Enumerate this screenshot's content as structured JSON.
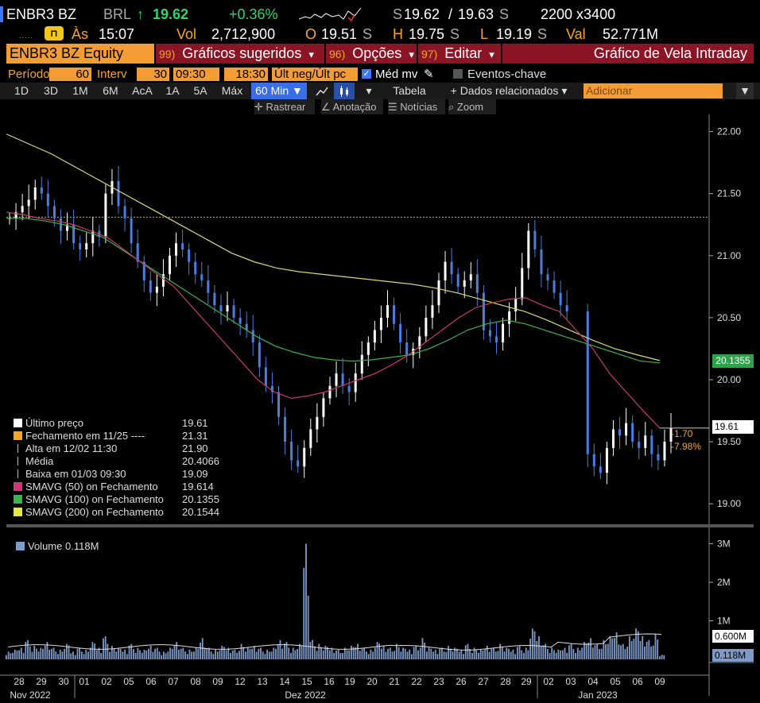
{
  "header": {
    "ticker": "ENBR3 BZ",
    "currency": "BRL",
    "up_arrow": "↑",
    "last": "19.62",
    "change_pct": "+0.36%",
    "bid_ask_prefix": "S",
    "bid": "19.62",
    "ask_sep": "/",
    "ask": "19.63",
    "ask_suffix": "S",
    "size": "2200 x3400",
    "as_label": "Às",
    "time": "15:07",
    "vol_label": "Vol",
    "vol": "2,712,900",
    "open_label": "O",
    "open": "19.51",
    "open_suffix": "S",
    "high_label": "H",
    "high": "19.75",
    "high_suffix": "S",
    "low_label": "L",
    "low": "19.19",
    "low_suffix": "S",
    "val_label": "Val",
    "val": "52.771M"
  },
  "menubar": {
    "security": "ENBR3 BZ Equity",
    "m1_num": "99)",
    "m1": "Gráficos sugeridos",
    "m2_num": "96)",
    "m2": "Opções",
    "m3_num": "97)",
    "m3": "Editar",
    "dropdown": "▾",
    "chart_title": "Gráfico de Vela Intraday"
  },
  "params": {
    "periodo_label": "Período",
    "periodo": "60",
    "interv_label": "Interv",
    "interv": "30",
    "start": "09:30",
    "end": "18:30",
    "price_type": "Últ neg/Últ pc",
    "med_mv": "Méd mv",
    "eventos": "Eventos-chave"
  },
  "range_tabs": [
    "1D",
    "3D",
    "1M",
    "6M",
    "AcA",
    "1A",
    "5A",
    "Máx"
  ],
  "active_tab": "60 Min ▼",
  "toolbar": {
    "tabela": "Tabela",
    "dados": "+ Dados relacionados",
    "adicionar": "Adicionar"
  },
  "subtools": {
    "rastrear": "Rastrear",
    "anotacao": "Anotação",
    "noticias": "Notícias",
    "zoom": "Zoom"
  },
  "legend": {
    "rows": [
      {
        "label": "Último preço",
        "value": "19.61",
        "color": "#ffffff"
      },
      {
        "label": "Fechamento em 11/25 ----",
        "value": "21.31",
        "color": "#f5a623"
      },
      {
        "label": "Alta em 12/02 11:30",
        "value": "21.90",
        "color": "#bbbbbb"
      },
      {
        "label": "Média",
        "value": "20.4066",
        "color": "#bbbbbb"
      },
      {
        "label": "Baixa em 01/03 09:30",
        "value": "19.09",
        "color": "#bbbbbb"
      },
      {
        "label": "SMAVG (50)  on Fechamento",
        "value": "19.614",
        "color": "#d6337a"
      },
      {
        "label": "SMAVG (100)  on Fechamento",
        "value": "20.1355",
        "color": "#3cb34a"
      },
      {
        "label": "SMAVG (200)  on Fechamento",
        "value": "20.1544",
        "color": "#e8e83a"
      }
    ],
    "volume_label": "Volume",
    "volume_value": "0.118M"
  },
  "price_tags": {
    "sma100": "20.1355",
    "last": "19.61",
    "chg": "-1.70",
    "chg_pct": "-7.98%",
    "vol_avg": "0.600M",
    "vol_last": "0.118M"
  },
  "chart_data": {
    "type": "candlestick",
    "y_ticks": [
      "22.00",
      "21.50",
      "21.00",
      "20.50",
      "20.00",
      "19.50",
      "19.00"
    ],
    "ylim": [
      18.95,
      22.1
    ],
    "vol_ticks": [
      "3M",
      "2M",
      "1M"
    ],
    "x_ticks": [
      "28",
      "29",
      "30",
      "01",
      "02",
      "05",
      "06",
      "07",
      "08",
      "09",
      "12",
      "13",
      "14",
      "15",
      "16",
      "19",
      "20",
      "21",
      "22",
      "23",
      "26",
      "27",
      "28",
      "29",
      "02",
      "03",
      "04",
      "05",
      "06",
      "09"
    ],
    "x_month_labels": [
      "Nov 2022",
      "Dez 2022",
      "Jan 2023"
    ],
    "reference_line": 21.31,
    "closes": [
      21.3,
      21.35,
      21.4,
      21.45,
      21.55,
      21.5,
      21.4,
      21.3,
      21.2,
      21.25,
      21.1,
      21.05,
      21.1,
      21.2,
      21.15,
      21.5,
      21.6,
      21.4,
      21.3,
      21.1,
      20.95,
      20.8,
      20.7,
      20.75,
      20.85,
      21.0,
      21.1,
      21.05,
      20.95,
      20.85,
      20.8,
      20.7,
      20.6,
      20.55,
      20.6,
      20.5,
      20.45,
      20.4,
      20.3,
      20.1,
      19.95,
      19.9,
      19.7,
      19.5,
      19.35,
      19.3,
      19.45,
      19.6,
      19.7,
      19.85,
      19.95,
      20.05,
      19.95,
      19.9,
      20.05,
      20.2,
      20.3,
      20.4,
      20.5,
      20.6,
      20.45,
      20.3,
      20.2,
      20.25,
      20.35,
      20.5,
      20.6,
      20.8,
      20.95,
      20.85,
      20.75,
      20.8,
      20.85,
      20.7,
      20.4,
      20.35,
      20.3,
      20.45,
      20.55,
      20.65,
      20.9,
      21.2,
      21.05,
      20.85,
      20.8,
      20.7,
      20.6,
      20.55,
      19.4,
      19.3,
      19.25,
      19.45,
      19.6,
      19.55,
      19.65,
      19.5,
      19.45,
      19.55,
      19.4,
      19.35,
      19.5,
      19.61
    ],
    "sma50": [
      21.35,
      21.33,
      21.3,
      21.28,
      21.25,
      21.2,
      21.15,
      21.05,
      20.95,
      20.85,
      20.75,
      20.6,
      20.45,
      20.3,
      20.15,
      20.0,
      19.9,
      19.85,
      19.87,
      19.9,
      19.95,
      20.0,
      20.05,
      20.12,
      20.2,
      20.3,
      20.4,
      20.5,
      20.58,
      20.62,
      20.65,
      20.66,
      20.6,
      20.55,
      20.4,
      20.25,
      20.05,
      19.9,
      19.75,
      19.61
    ],
    "sma100": [
      21.3,
      21.3,
      21.28,
      21.25,
      21.2,
      21.15,
      21.05,
      20.95,
      20.85,
      20.75,
      20.65,
      20.55,
      20.45,
      20.35,
      20.27,
      20.22,
      20.18,
      20.16,
      20.15,
      20.16,
      20.18,
      20.2,
      20.25,
      20.32,
      20.4,
      20.45,
      20.48,
      20.45,
      20.4,
      20.35,
      20.3,
      20.25,
      20.2,
      20.15,
      20.1355
    ],
    "sma200": [
      21.98,
      21.9,
      21.82,
      21.72,
      21.62,
      21.52,
      21.42,
      21.32,
      21.22,
      21.12,
      21.02,
      20.95,
      20.9,
      20.87,
      20.85,
      20.83,
      20.81,
      20.79,
      20.77,
      20.74,
      20.7,
      20.65,
      20.6,
      20.55,
      20.48,
      20.4,
      20.32,
      20.25,
      20.2,
      20.1544
    ],
    "volumes_m": [
      0.2,
      0.25,
      0.3,
      0.5,
      0.35,
      0.3,
      0.45,
      0.3,
      0.25,
      0.4,
      0.2,
      0.3,
      0.25,
      0.45,
      0.3,
      0.6,
      0.35,
      0.3,
      0.25,
      0.4,
      0.3,
      0.25,
      0.35,
      0.3,
      0.2,
      0.3,
      0.45,
      0.3,
      0.25,
      0.3,
      0.55,
      0.3,
      0.25,
      0.35,
      0.3,
      0.25,
      0.4,
      0.3,
      0.35,
      0.3,
      0.25,
      0.3,
      0.5,
      0.45,
      0.3,
      0.4,
      3.0,
      0.5,
      0.4,
      0.35,
      0.3,
      0.25,
      0.3,
      0.35,
      0.4,
      0.3,
      0.25,
      0.45,
      0.35,
      0.3,
      0.4,
      0.3,
      0.25,
      0.35,
      0.55,
      0.3,
      0.25,
      0.3,
      0.35,
      0.3,
      0.25,
      0.4,
      0.3,
      0.25,
      0.35,
      0.3,
      0.4,
      0.3,
      0.25,
      0.35,
      0.3,
      0.8,
      0.6,
      0.4,
      0.3,
      0.25,
      0.3,
      0.4,
      0.3,
      0.45,
      0.55,
      0.4,
      0.5,
      0.6,
      0.7,
      0.4,
      0.6,
      0.8,
      0.6,
      0.5,
      0.65,
      0.118
    ],
    "vol_avg_m": 0.6
  }
}
